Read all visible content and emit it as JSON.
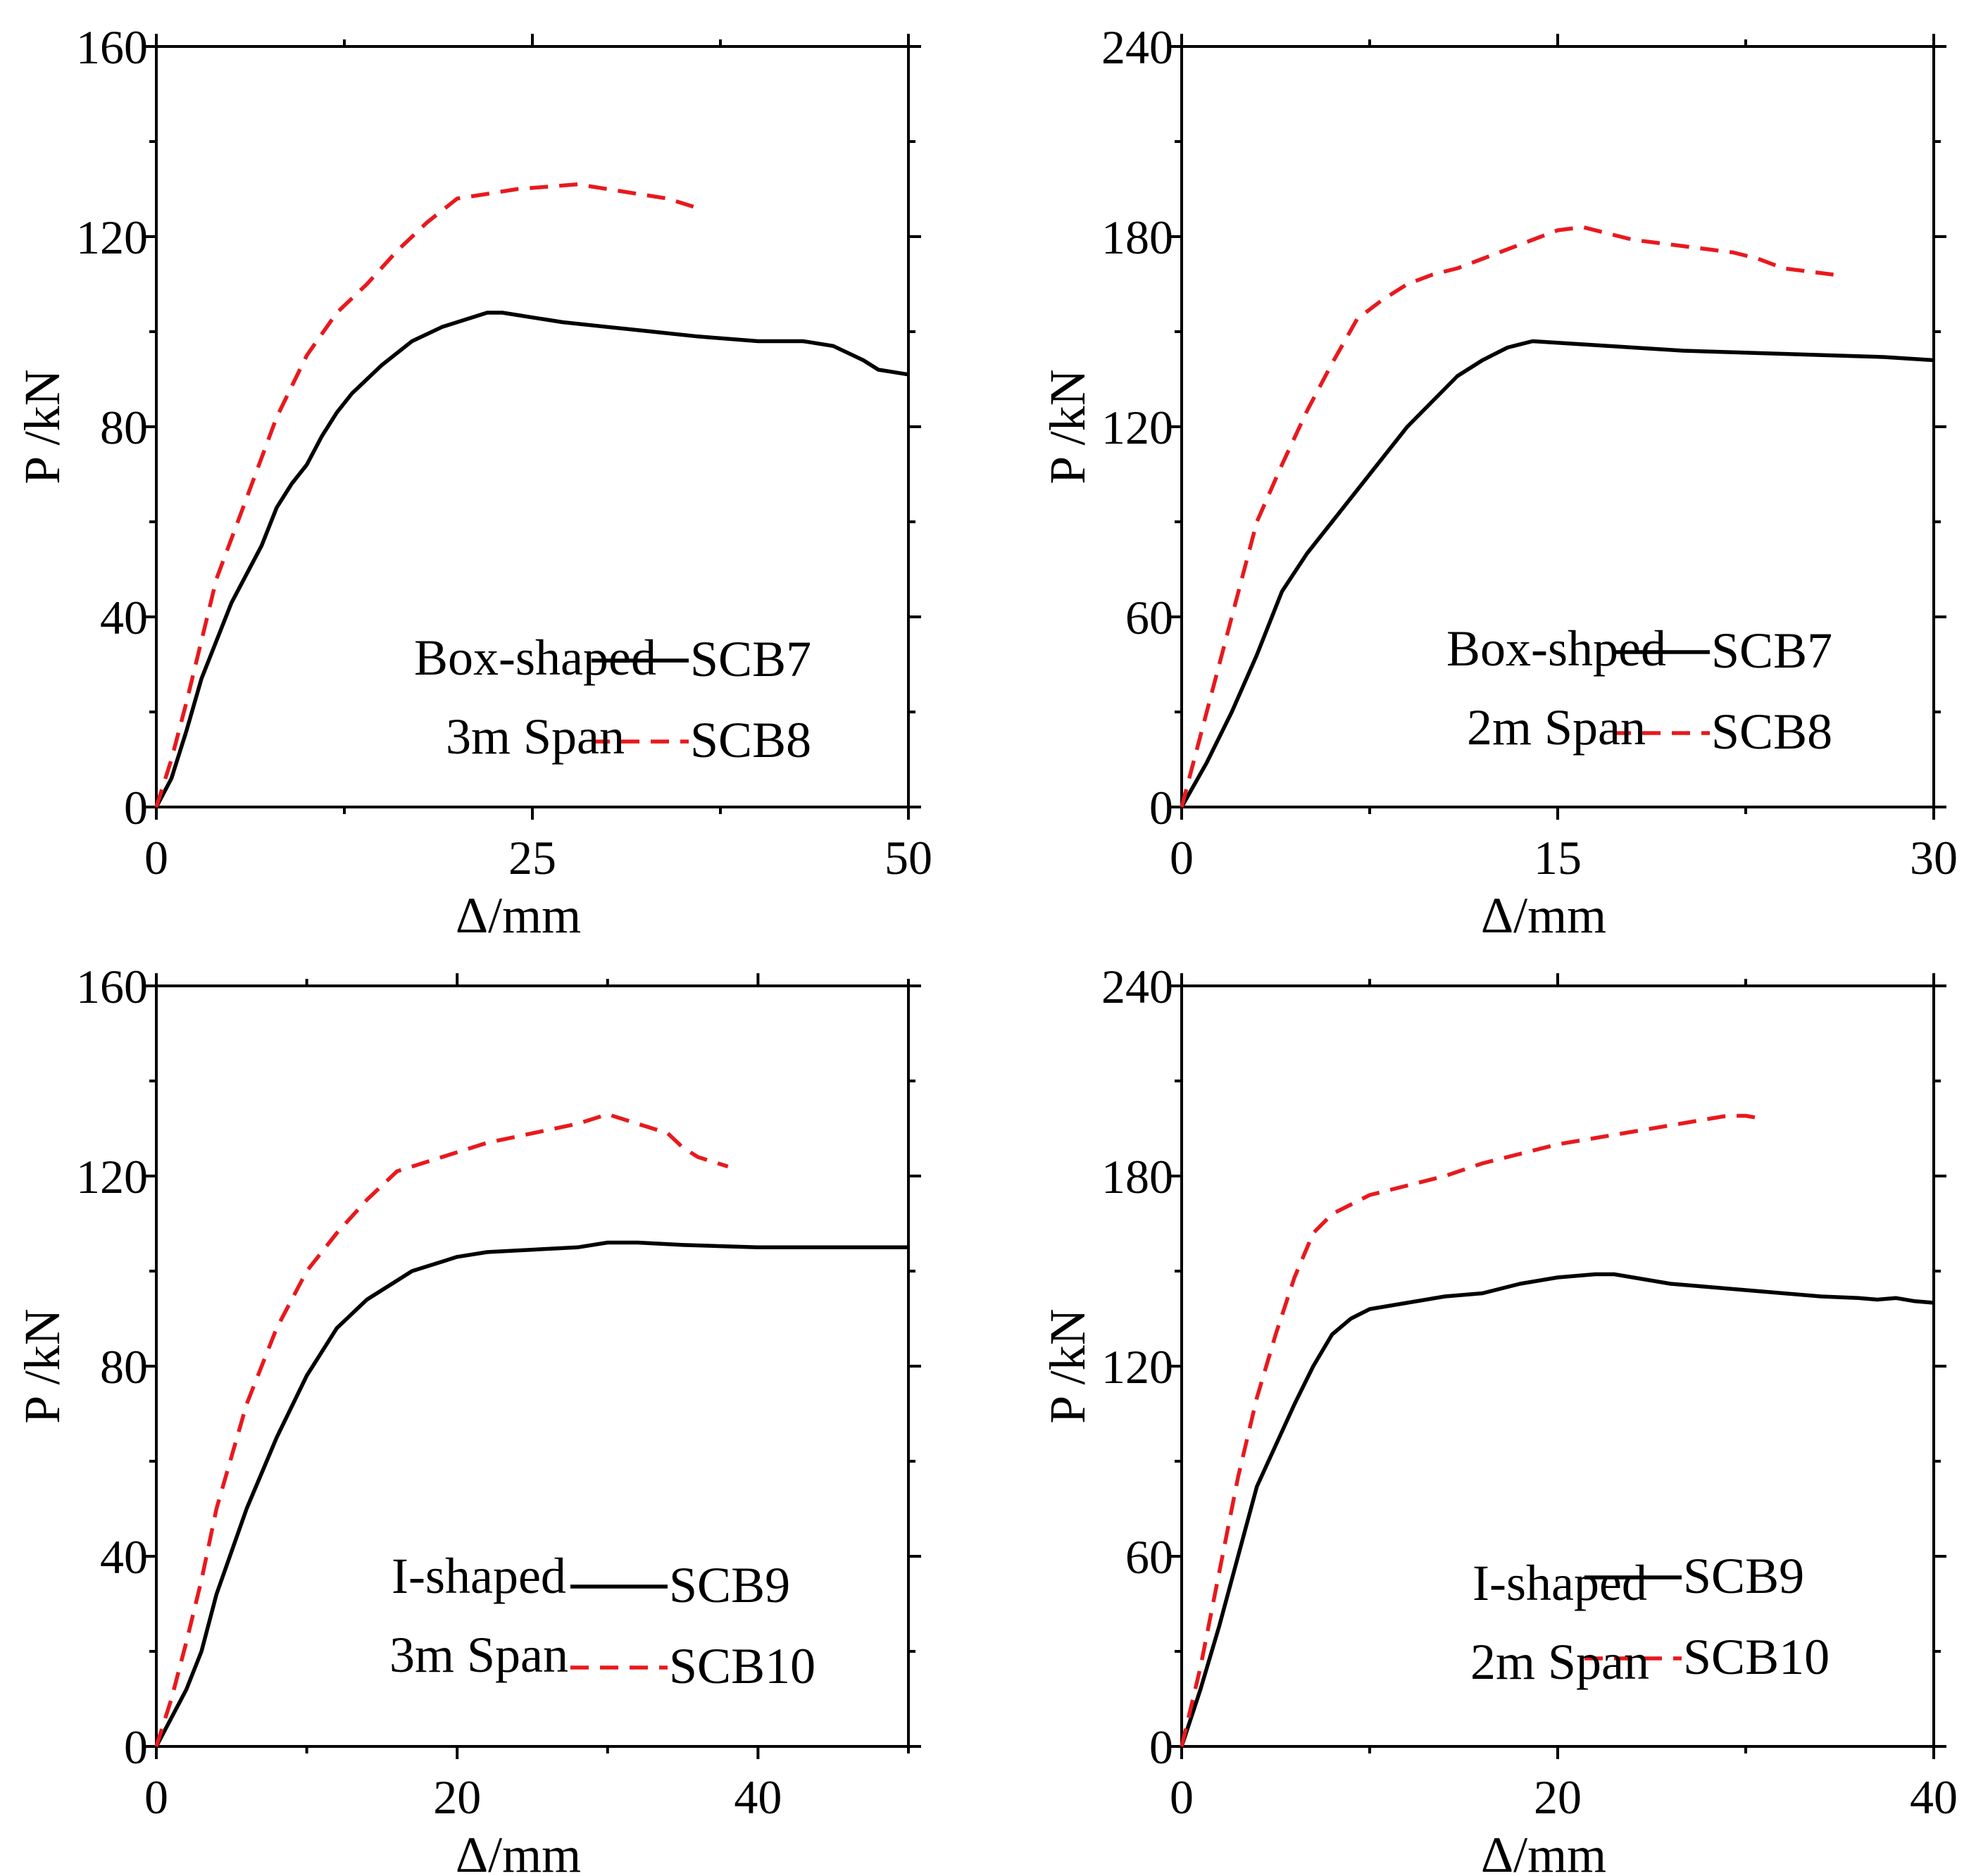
{
  "chart_data": [
    {
      "type": "line",
      "xlabel": "Δ/mm",
      "ylabel": "P /kN",
      "xlim": [
        0,
        50
      ],
      "ylim": [
        0,
        160
      ],
      "xticks": [
        0,
        25,
        50
      ],
      "yticks": [
        0,
        40,
        80,
        120,
        160
      ],
      "annotation": [
        "Box-shaped",
        "3m Span"
      ],
      "series": [
        {
          "name": "SCB7",
          "color": "#000000",
          "style": "solid",
          "x": [
            0,
            1,
            2,
            3,
            5,
            7,
            8,
            9,
            10,
            11,
            12,
            13,
            15,
            17,
            19,
            21,
            22,
            23,
            24,
            25,
            26,
            27,
            30,
            33,
            36,
            40,
            43,
            45,
            47,
            48,
            50
          ],
          "y": [
            0,
            6,
            16,
            27,
            43,
            55,
            63,
            68,
            72,
            78,
            83,
            87,
            93,
            98,
            101,
            103,
            104,
            104,
            103.5,
            103,
            102.5,
            102,
            101,
            100,
            99,
            98,
            98,
            97,
            94,
            92,
            91
          ]
        },
        {
          "name": "SCB8",
          "color": "#e8191d",
          "style": "dashed",
          "x": [
            0,
            1,
            2,
            3,
            4,
            6,
            8,
            10,
            12,
            14,
            16,
            18,
            20,
            22,
            24,
            26,
            28,
            30,
            32,
            34,
            36
          ],
          "y": [
            0,
            10,
            22,
            35,
            48,
            65,
            82,
            95,
            104,
            110,
            117,
            123,
            128,
            129,
            130,
            130.5,
            131,
            130,
            129,
            128,
            126
          ]
        }
      ]
    },
    {
      "type": "line",
      "xlabel": "Δ/mm",
      "ylabel": "P /kN",
      "xlim": [
        0,
        30
      ],
      "ylim": [
        0,
        240
      ],
      "xticks": [
        0,
        15,
        30
      ],
      "yticks": [
        0,
        60,
        120,
        180,
        240
      ],
      "annotation": [
        "Box-shped",
        "2m Span"
      ],
      "series": [
        {
          "name": "SCB7",
          "color": "#000000",
          "style": "solid",
          "x": [
            0,
            1,
            2,
            3,
            4,
            5,
            6,
            7,
            8,
            9,
            10,
            11,
            12,
            13,
            14,
            16,
            18,
            20,
            22,
            24,
            26,
            28,
            30
          ],
          "y": [
            0,
            14,
            30,
            48,
            68,
            80,
            90,
            100,
            110,
            120,
            128,
            136,
            141,
            145,
            147,
            146,
            145,
            144,
            143.5,
            143,
            142.5,
            142,
            141
          ]
        },
        {
          "name": "SCB8",
          "color": "#e8191d",
          "style": "dashed",
          "x": [
            0,
            0.5,
            1,
            1.5,
            2,
            3,
            4,
            5,
            6,
            7,
            8,
            9,
            10,
            11,
            12,
            13,
            14,
            15,
            16,
            17,
            18,
            19,
            20,
            21,
            22,
            23,
            24,
            25,
            26
          ],
          "y": [
            0,
            15,
            30,
            45,
            60,
            90,
            108,
            125,
            140,
            154,
            160,
            165,
            168,
            170,
            173,
            176,
            179,
            182,
            183,
            181,
            179,
            178,
            177,
            176,
            175,
            173,
            170,
            169,
            168
          ]
        }
      ]
    },
    {
      "type": "line",
      "xlabel": "Δ/mm",
      "ylabel": "P /kN",
      "xlim": [
        0,
        50
      ],
      "ylim": [
        0,
        160
      ],
      "xticks": [
        0,
        20,
        40
      ],
      "yticks": [
        0,
        40,
        80,
        120,
        160
      ],
      "annotation": [
        "I-shaped",
        "3m Span"
      ],
      "series": [
        {
          "name": "SCB9",
          "color": "#000000",
          "style": "solid",
          "x": [
            0,
            2,
            3,
            4,
            6,
            8,
            10,
            12,
            14,
            16,
            17,
            18,
            20,
            22,
            25,
            28,
            30,
            32,
            35,
            40,
            45,
            50
          ],
          "y": [
            0,
            12,
            20,
            32,
            50,
            65,
            78,
            88,
            94,
            98,
            100,
            101,
            103,
            104,
            104.5,
            105,
            106,
            106,
            105.5,
            105,
            105,
            105
          ]
        },
        {
          "name": "SCB10",
          "color": "#e8191d",
          "style": "dashed",
          "x": [
            0,
            1,
            2,
            3,
            4,
            6,
            8,
            10,
            12,
            14,
            16,
            18,
            20,
            22,
            25,
            28,
            30,
            32,
            34,
            35,
            36,
            38
          ],
          "y": [
            0,
            10,
            22,
            35,
            50,
            72,
            88,
            100,
            108,
            115,
            121,
            123,
            125,
            127,
            129,
            131,
            133,
            131,
            129,
            126,
            124,
            122
          ]
        }
      ]
    },
    {
      "type": "line",
      "xlabel": "Δ/mm",
      "ylabel": "P /kN",
      "xlim": [
        0,
        40
      ],
      "ylim": [
        0,
        240
      ],
      "xticks": [
        0,
        20,
        40
      ],
      "yticks": [
        0,
        60,
        120,
        180,
        240
      ],
      "annotation": [
        "I-shaped",
        "2m Span"
      ],
      "series": [
        {
          "name": "SCB9",
          "color": "#000000",
          "style": "solid",
          "x": [
            0,
            1,
            2,
            3,
            4,
            5,
            6,
            7,
            8,
            9,
            10,
            12,
            14,
            16,
            18,
            20,
            22,
            23,
            24,
            26,
            28,
            30,
            32,
            34,
            36,
            37,
            38,
            39,
            40
          ],
          "y": [
            0,
            18,
            38,
            60,
            82,
            95,
            108,
            120,
            130,
            135,
            138,
            140,
            142,
            143,
            146,
            148,
            149,
            149,
            148,
            146,
            145,
            144,
            143,
            142,
            141.5,
            141,
            141.5,
            140.5,
            140
          ]
        },
        {
          "name": "SCB10",
          "color": "#e8191d",
          "style": "dashed",
          "x": [
            0,
            1,
            2,
            3,
            4,
            5,
            6,
            7,
            8,
            9,
            10,
            12,
            14,
            16,
            18,
            20,
            22,
            24,
            26,
            28,
            29,
            30,
            31
          ],
          "y": [
            0,
            25,
            55,
            85,
            110,
            130,
            148,
            162,
            168,
            171,
            174,
            177,
            180,
            184,
            187,
            190,
            192,
            194,
            196,
            198,
            199,
            199,
            198
          ]
        }
      ]
    }
  ]
}
